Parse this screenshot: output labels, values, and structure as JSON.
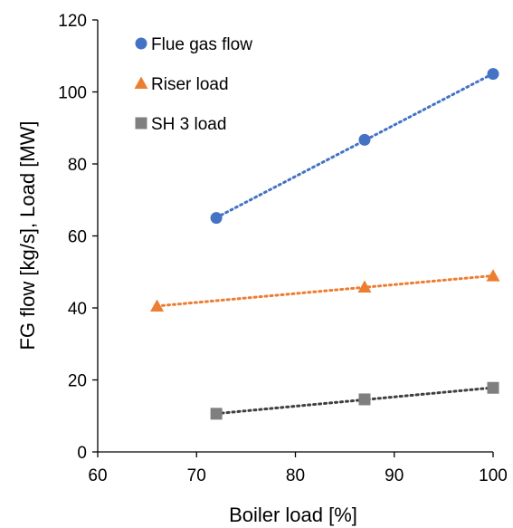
{
  "chart_data": {
    "type": "scatter",
    "xlabel": "Boiler load [%]",
    "ylabel": "FG flow  [kg/s], Load [MW]",
    "xlim": [
      60,
      100
    ],
    "ylim": [
      0,
      120
    ],
    "x_ticks": [
      60,
      70,
      80,
      90,
      100
    ],
    "y_ticks": [
      0,
      20,
      40,
      60,
      80,
      100,
      120
    ],
    "grid": false,
    "legend_position": "top-left",
    "trendlines": "linear, dotted",
    "series": [
      {
        "name": "Flue gas flow",
        "marker": "circle",
        "color": "#4472C4",
        "trend_color": "#4472C4",
        "points": [
          {
            "x": 72,
            "y": 65
          },
          {
            "x": 87,
            "y": 86.7
          },
          {
            "x": 100,
            "y": 105
          }
        ]
      },
      {
        "name": "Riser load",
        "marker": "triangle",
        "color": "#ED7D31",
        "trend_color": "#ED7D31",
        "points": [
          {
            "x": 66,
            "y": 40.5
          },
          {
            "x": 87,
            "y": 45.8
          },
          {
            "x": 100,
            "y": 48.9
          }
        ]
      },
      {
        "name": "SH 3 load",
        "marker": "square",
        "color": "#7F7F7F",
        "trend_color": "#404040",
        "points": [
          {
            "x": 72,
            "y": 10.6
          },
          {
            "x": 87,
            "y": 14.6
          },
          {
            "x": 100,
            "y": 17.8
          }
        ]
      }
    ]
  }
}
